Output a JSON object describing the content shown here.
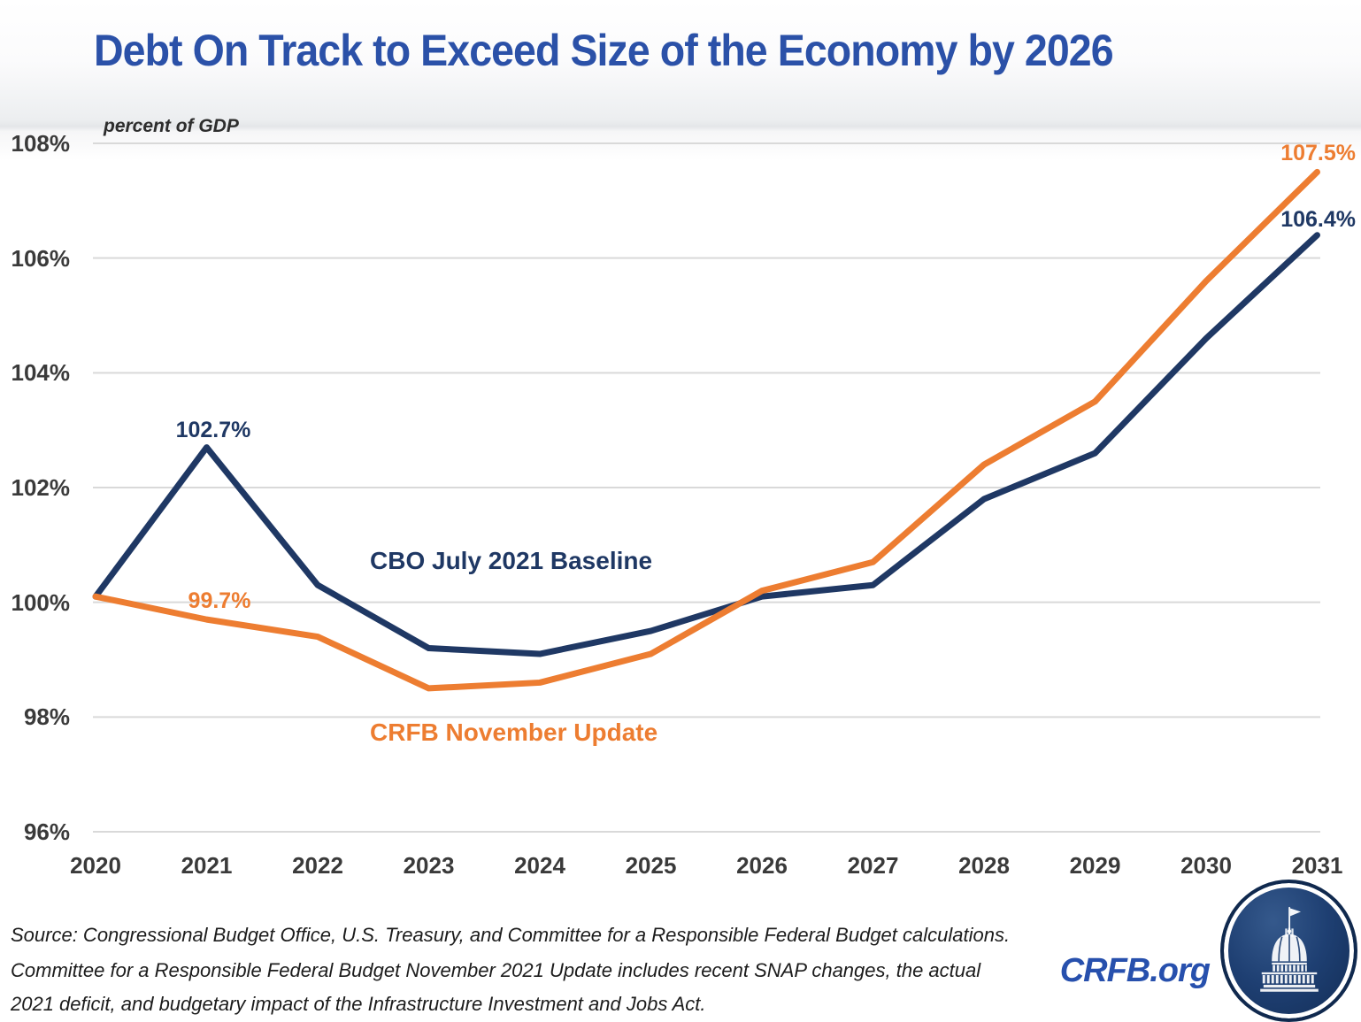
{
  "page": {
    "title": "Debt On Track to Exceed Size of the Economy by 2026",
    "axis_note": "percent of GDP"
  },
  "chart_data": {
    "type": "line",
    "title": "Debt On Track to Exceed Size of the Economy by 2026",
    "subtitle": "percent of GDP",
    "x": [
      2020,
      2021,
      2022,
      2023,
      2024,
      2025,
      2026,
      2027,
      2028,
      2029,
      2030,
      2031
    ],
    "x_tick_labels": [
      "2020",
      "2021",
      "2022",
      "2023",
      "2024",
      "2025",
      "2026",
      "2027",
      "2028",
      "2029",
      "2030",
      "2031"
    ],
    "y_ticks": [
      96,
      98,
      100,
      102,
      104,
      106,
      108
    ],
    "y_tick_labels": [
      "96%",
      "98%",
      "100%",
      "102%",
      "104%",
      "106%",
      "108%"
    ],
    "ylim": [
      96,
      108
    ],
    "xlabel": "",
    "ylabel": "percent of GDP",
    "grid": "horizontal-only",
    "legend_position": "inline-series-labels",
    "series": [
      {
        "name": "CBO July 2021 Baseline",
        "color": "#1f3864",
        "values": [
          100.1,
          102.7,
          100.3,
          99.2,
          99.1,
          99.5,
          100.1,
          100.3,
          101.8,
          102.6,
          104.6,
          106.4
        ]
      },
      {
        "name": "CRFB November Update",
        "color": "#ed7d31",
        "values": [
          100.1,
          99.7,
          99.4,
          98.5,
          98.6,
          99.1,
          100.2,
          100.7,
          102.4,
          103.5,
          105.6,
          107.5
        ]
      }
    ],
    "annotations": [
      {
        "text": "102.7%",
        "series": "CBO July 2021 Baseline",
        "x": 2021,
        "y": 102.7
      },
      {
        "text": "99.7%",
        "series": "CRFB November Update",
        "x": 2021,
        "y": 99.7
      },
      {
        "text": "107.5%",
        "series": "CRFB November Update",
        "x": 2031,
        "y": 107.5
      },
      {
        "text": "106.4%",
        "series": "CBO July 2021 Baseline",
        "x": 2031,
        "y": 106.4
      }
    ]
  },
  "footer": {
    "source_lines": [
      "Source: Congressional Budget Office, U.S. Treasury, and Committee for a Responsible Federal Budget calculations.",
      "Committee for a Responsible Federal Budget November 2021 Update includes recent SNAP changes, the actual",
      "2021 deficit, and budgetary impact of the Infrastructure Investment and Jobs Act."
    ]
  },
  "branding": {
    "site_label": "CRFB.org",
    "logo": "crfb-capitol-logo"
  },
  "colors": {
    "title_blue": "#2b51a8",
    "navy_series": "#1f3864",
    "orange_series": "#ed7d31",
    "crfb_link_blue": "#2750ad",
    "tick_text": "#3a3a3a",
    "gridline": "#d9d9d9"
  }
}
